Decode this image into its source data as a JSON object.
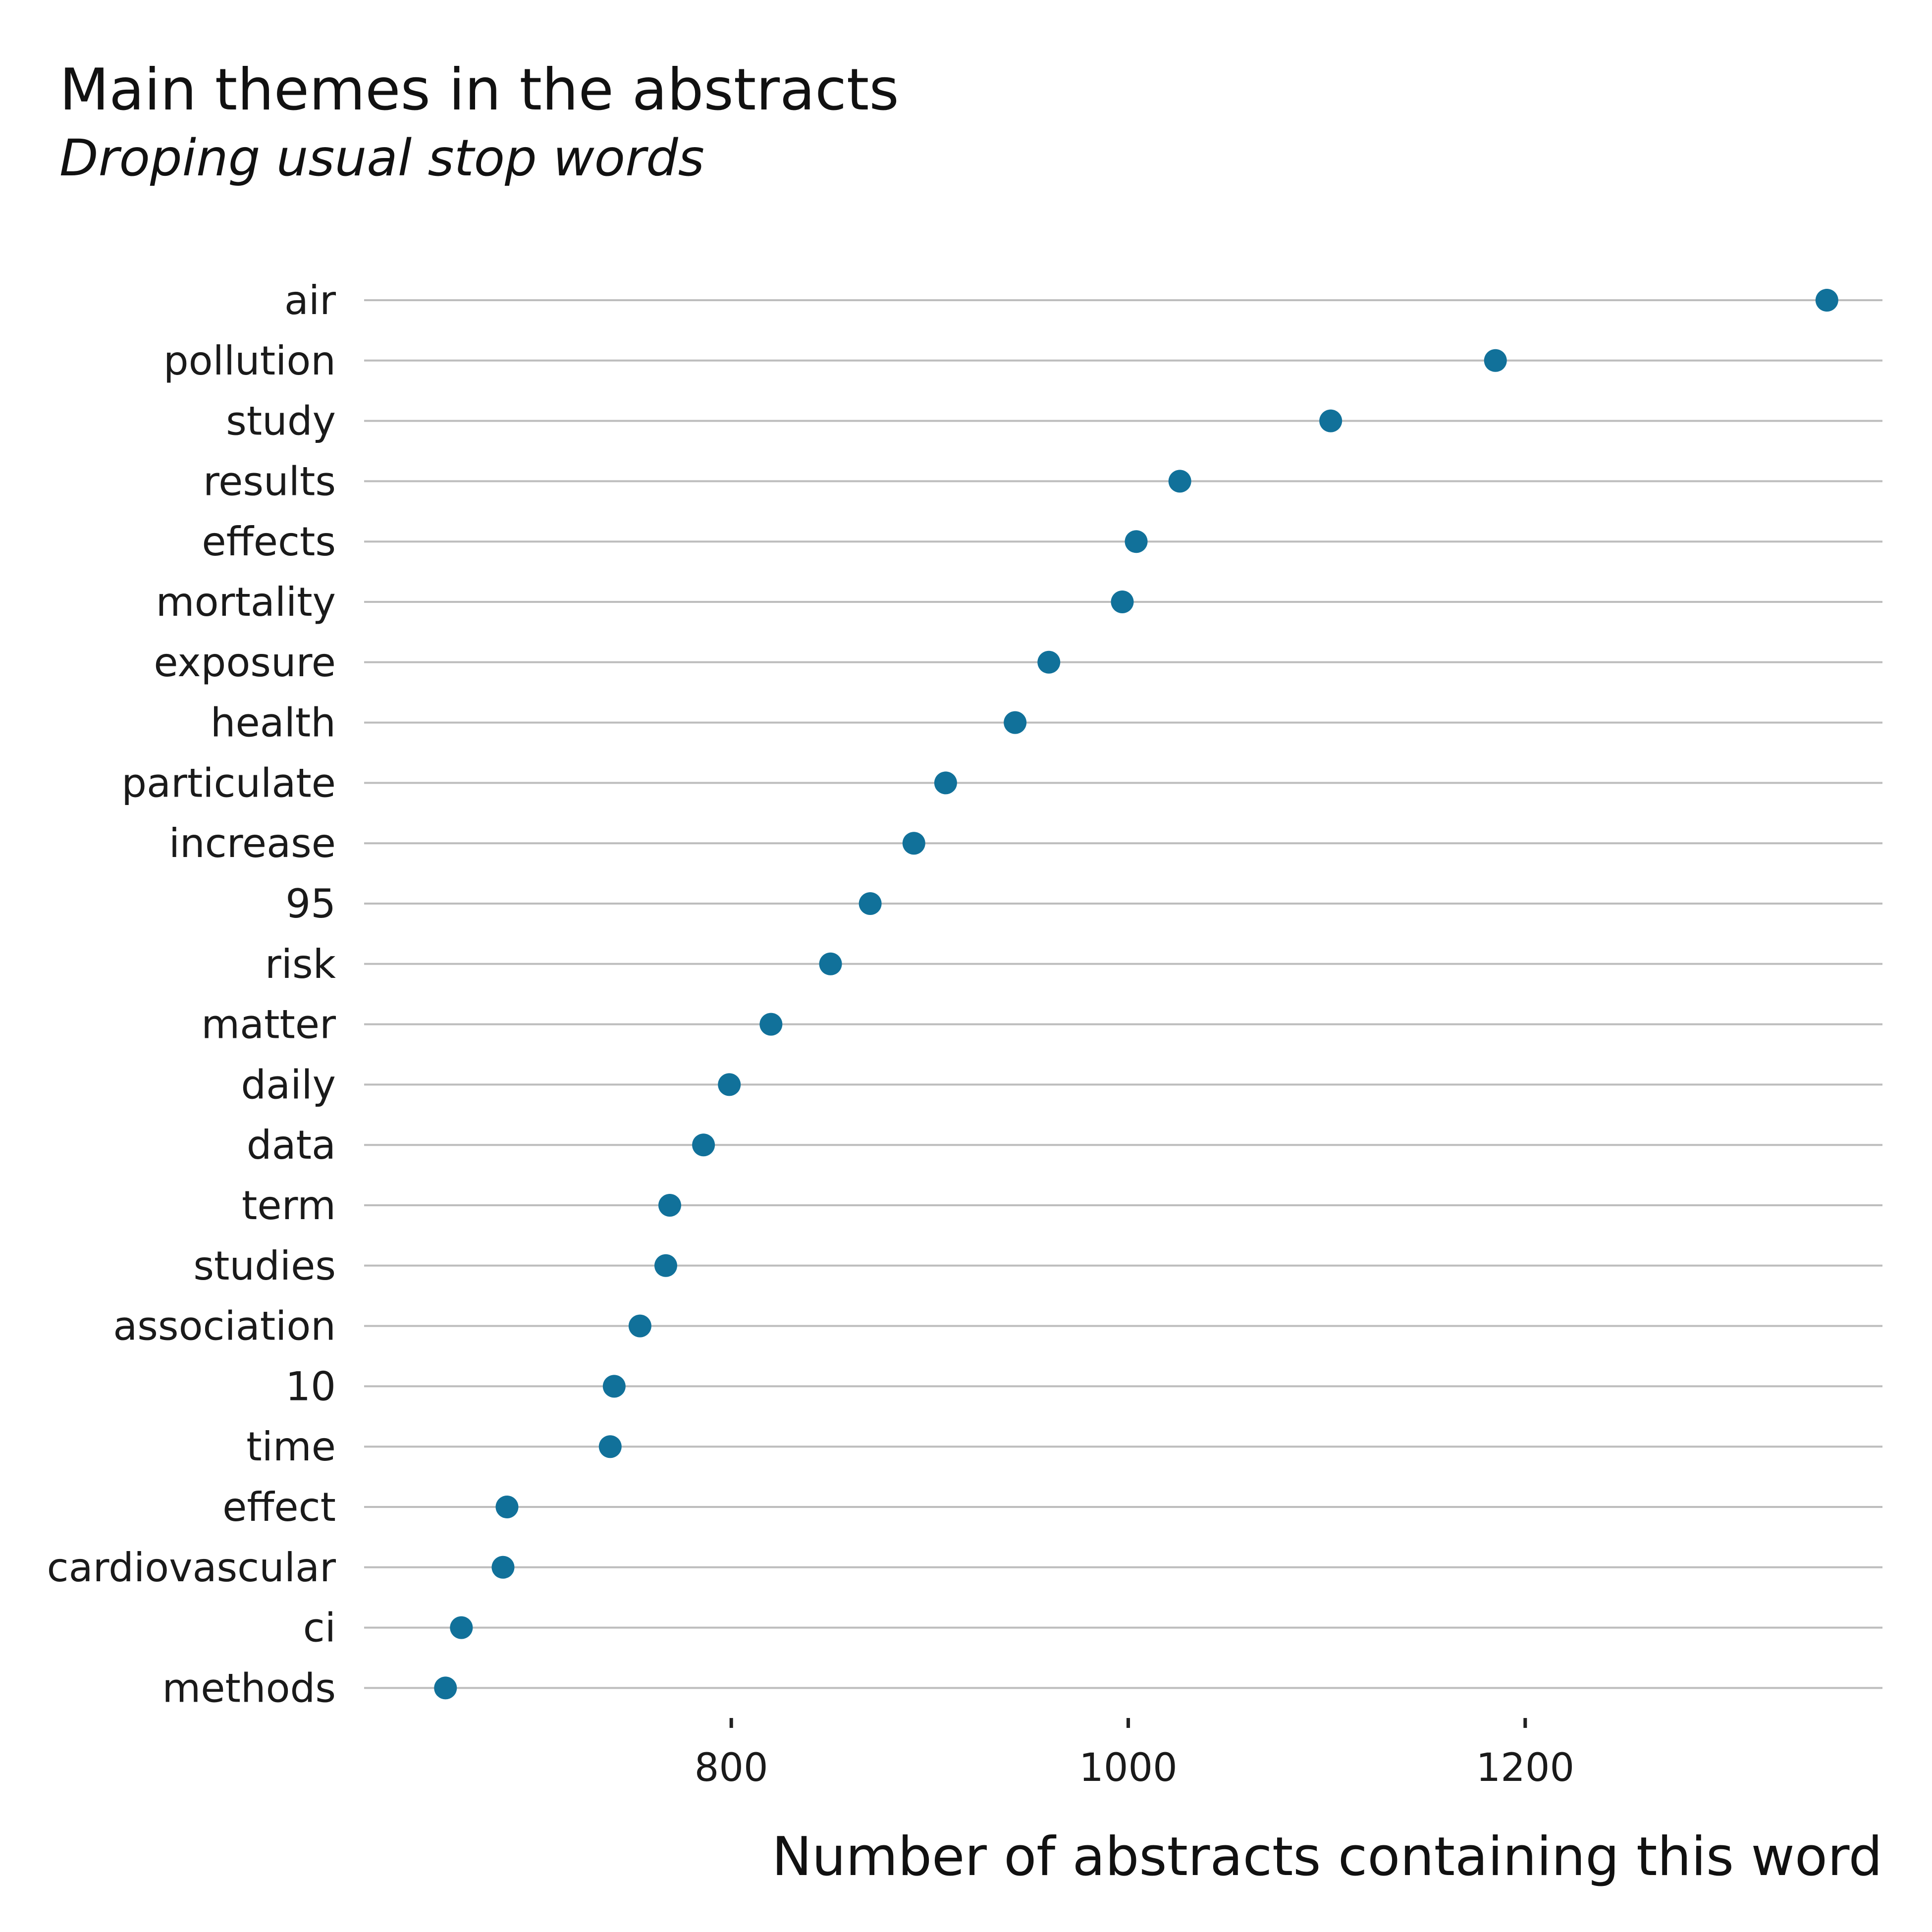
{
  "chart_data": {
    "type": "scatter",
    "title": "Main themes in the abstracts",
    "subtitle": "Droping usual stop words",
    "xlabel": "Number of abstracts containing this word",
    "ylabel": "",
    "xlim": [
      615,
      1380
    ],
    "x_ticks": [
      800,
      1000,
      1200
    ],
    "x_tick_labels": [
      "800",
      "1000",
      "1200"
    ],
    "grid": "horizontal",
    "point_color": "#11719a",
    "categories": [
      "air",
      "pollution",
      "study",
      "results",
      "effects",
      "mortality",
      "exposure",
      "health",
      "particulate",
      "increase",
      "95",
      "risk",
      "matter",
      "daily",
      "data",
      "term",
      "studies",
      "association",
      "10",
      "time",
      "effect",
      "cardiovascular",
      "ci",
      "methods"
    ],
    "values": [
      1352,
      1185,
      1102,
      1026,
      1004,
      997,
      960,
      943,
      908,
      892,
      870,
      850,
      820,
      799,
      786,
      769,
      767,
      754,
      741,
      739,
      687,
      685,
      664,
      656
    ]
  }
}
